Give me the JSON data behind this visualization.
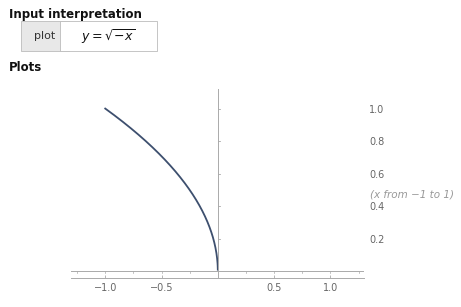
{
  "title_text": "Input interpretation",
  "label_plot": "plot",
  "formula": "y = \\sqrt{-x}",
  "plots_label": "Plots",
  "annotation": "(x from −1 to 1)",
  "xlim": [
    -1.3,
    1.3
  ],
  "ylim": [
    -0.04,
    1.12
  ],
  "xticks": [
    -1.0,
    -0.5,
    0.5,
    1.0
  ],
  "xtick_labels": [
    "−1.0",
    "−0.5",
    "0.5",
    "1.0"
  ],
  "yticks": [
    0.2,
    0.4,
    0.6,
    0.8,
    1.0
  ],
  "ytick_labels": [
    "0.2",
    "0.4",
    "0.6",
    "0.8",
    "1.0"
  ],
  "curve_color": "#3d4f6e",
  "bg_color": "#ffffff",
  "axis_color": "#aaaaaa",
  "tick_label_color": "#666666",
  "annotation_color": "#999999",
  "line_width": 1.3
}
